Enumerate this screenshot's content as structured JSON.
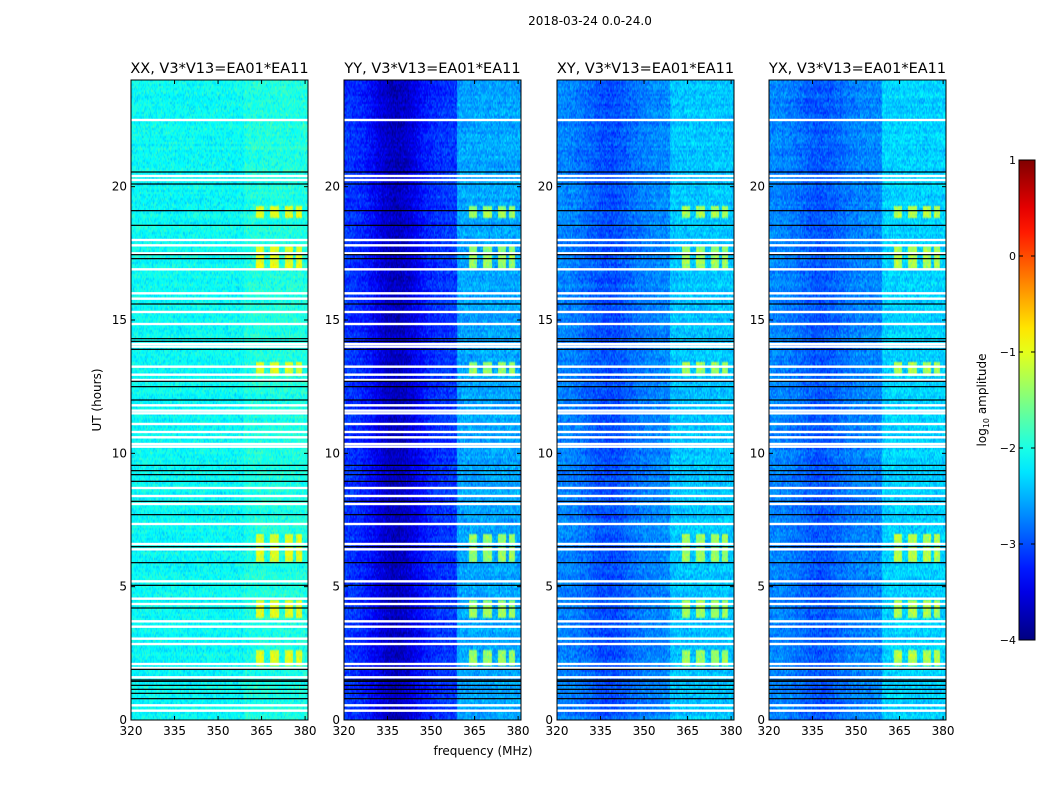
{
  "figure": {
    "suptitle": "2018-03-24 0.0-24.0"
  },
  "chart_data": {
    "type": "heatmap",
    "title": "2018-03-24 0.0-24.0",
    "xlabel": "frequency (MHz)",
    "ylabel": "UT (hours)",
    "xlim": [
      320,
      381
    ],
    "ylim": [
      0,
      24
    ],
    "x_ticks": [
      320,
      335,
      350,
      365,
      380
    ],
    "y_ticks": [
      0,
      5,
      10,
      15,
      20
    ],
    "colorbar": {
      "label": "log10 amplitude",
      "label_text": "log",
      "label_sub": "10",
      "label_rest": " amplitude",
      "range": [
        -4,
        1
      ],
      "ticks": [
        1,
        0,
        -1,
        -2,
        -3,
        -4
      ],
      "colormap": [
        "#00007f",
        "#0000ff",
        "#007fff",
        "#00ffff",
        "#7fff7f",
        "#ffff00",
        "#ff7f00",
        "#ff0000",
        "#7f0000"
      ]
    },
    "panels": [
      {
        "title": "XX, V3*V13=EA01*EA11",
        "base_log_amplitude": -2.1,
        "band_enhancement": 0.2,
        "dip_depth": 0.0
      },
      {
        "title": "YY, V3*V13=EA01*EA11",
        "base_log_amplitude": -3.1,
        "band_enhancement": 0.9,
        "dip_depth": 0.6
      },
      {
        "title": "XY, V3*V13=EA01*EA11",
        "base_log_amplitude": -2.7,
        "band_enhancement": 0.5,
        "dip_depth": 0.3
      },
      {
        "title": "YX, V3*V13=EA01*EA11",
        "base_log_amplitude": -2.7,
        "band_enhancement": 0.6,
        "dip_depth": 0.25
      }
    ],
    "flagged_rows_ut_white": [
      0.35,
      0.55,
      1.6,
      1.95,
      2.1,
      2.85,
      3.05,
      3.5,
      3.7,
      4.35,
      4.55,
      5.2,
      6.4,
      6.6,
      7.35,
      8.1,
      8.4,
      8.7,
      10.25,
      10.35,
      10.6,
      10.8,
      11.1,
      11.5,
      11.6,
      11.8,
      12.75,
      12.95,
      13.25,
      14.0,
      14.1,
      14.85,
      15.3,
      15.8,
      16.0,
      16.9,
      17.5,
      17.8,
      18.0,
      20.25,
      20.4,
      22.5
    ],
    "flagged_rows_ut_black": [
      0.8,
      1.0,
      1.15,
      1.3,
      1.45,
      1.5,
      1.9,
      4.2,
      5.05,
      5.9,
      6.5,
      7.7,
      8.2,
      8.95,
      9.2,
      9.35,
      9.55,
      12.0,
      12.5,
      12.7,
      13.9,
      14.2,
      14.3,
      15.6,
      17.3,
      17.45,
      18.55,
      19.1,
      20.1,
      20.55
    ],
    "rfi_channels_mhz": [
      [
        363,
        366
      ],
      [
        368,
        371
      ],
      [
        373,
        376
      ],
      [
        377,
        379
      ]
    ],
    "rfi_epochs_ut": [
      [
        2.0,
        2.6
      ],
      [
        3.8,
        4.5
      ],
      [
        5.9,
        6.5
      ],
      [
        6.6,
        7.0
      ],
      [
        12.9,
        13.4
      ],
      [
        16.9,
        17.8
      ],
      [
        18.8,
        19.3
      ]
    ]
  }
}
